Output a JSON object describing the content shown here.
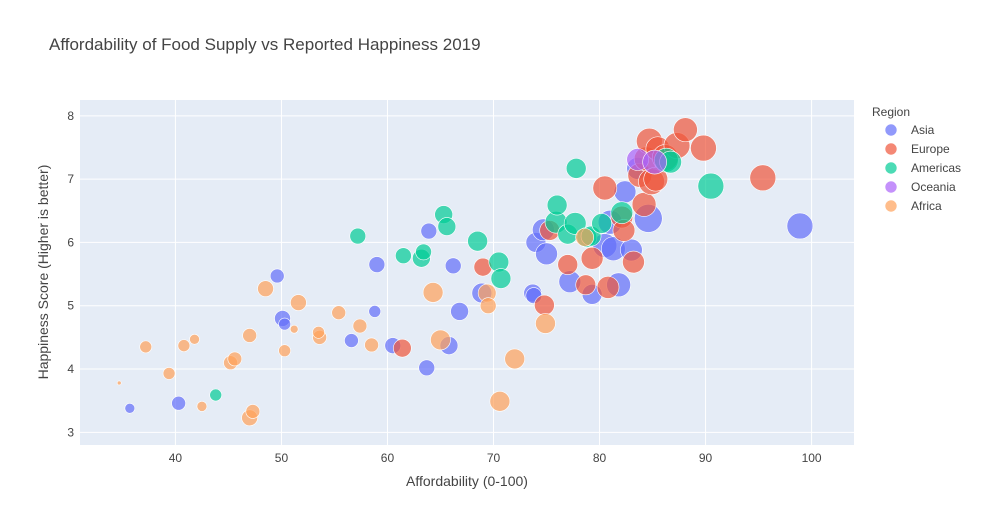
{
  "chart_data": {
    "type": "scatter",
    "title": "Affordability of Food Supply vs Reported Happiness 2019",
    "xlabel": "Affordability (0-100)",
    "ylabel": "Happiness Score (Higher is better)",
    "xlim": [
      31,
      104
    ],
    "ylim": [
      2.8,
      8.25
    ],
    "xticks": [
      40,
      50,
      60,
      70,
      80,
      90,
      100
    ],
    "yticks": [
      3,
      4,
      5,
      6,
      7,
      8
    ],
    "grid": true,
    "legend": {
      "title": "Region",
      "position": "right"
    },
    "series": [
      {
        "name": "Asia",
        "color": "#636efa",
        "points": [
          [
            35.7,
            3.38,
            5
          ],
          [
            40.3,
            3.46,
            7
          ],
          [
            49.6,
            5.47,
            7
          ],
          [
            50.1,
            4.8,
            8
          ],
          [
            50.3,
            4.71,
            6
          ],
          [
            56.6,
            4.45,
            7
          ],
          [
            58.8,
            4.91,
            6
          ],
          [
            59.0,
            5.65,
            8
          ],
          [
            60.5,
            4.37,
            8
          ],
          [
            63.7,
            4.02,
            8
          ],
          [
            63.9,
            6.18,
            8
          ],
          [
            65.8,
            4.37,
            9
          ],
          [
            66.2,
            5.63,
            8
          ],
          [
            66.8,
            4.91,
            9
          ],
          [
            68.9,
            5.2,
            10
          ],
          [
            73.7,
            5.2,
            9
          ],
          [
            73.8,
            5.16,
            8
          ],
          [
            74.0,
            6.0,
            10
          ],
          [
            74.7,
            6.2,
            11
          ],
          [
            75.0,
            5.82,
            11
          ],
          [
            77.2,
            5.38,
            11
          ],
          [
            79.3,
            5.18,
            10
          ],
          [
            80.5,
            5.95,
            12
          ],
          [
            81.0,
            6.32,
            12
          ],
          [
            81.3,
            5.9,
            12
          ],
          [
            81.8,
            5.33,
            12
          ],
          [
            82.4,
            6.8,
            11
          ],
          [
            83.0,
            5.88,
            11
          ],
          [
            83.6,
            7.17,
            11
          ],
          [
            84.6,
            6.38,
            14
          ],
          [
            98.9,
            6.26,
            13
          ]
        ]
      },
      {
        "name": "Europe",
        "color": "#ef553b",
        "points": [
          [
            61.4,
            4.33,
            9
          ],
          [
            69.0,
            5.61,
            9
          ],
          [
            74.8,
            5.01,
            10
          ],
          [
            75.3,
            6.19,
            10
          ],
          [
            77.0,
            5.65,
            10
          ],
          [
            78.7,
            5.33,
            10
          ],
          [
            79.3,
            5.75,
            11
          ],
          [
            80.5,
            6.86,
            12
          ],
          [
            80.8,
            5.29,
            11
          ],
          [
            82.1,
            6.4,
            11
          ],
          [
            82.3,
            6.19,
            11
          ],
          [
            83.2,
            5.69,
            11
          ],
          [
            83.8,
            7.06,
            12
          ],
          [
            84.2,
            6.6,
            12
          ],
          [
            84.4,
            7.32,
            12
          ],
          [
            84.7,
            7.6,
            13
          ],
          [
            84.9,
            6.96,
            13
          ],
          [
            85.3,
            7.0,
            12
          ],
          [
            85.5,
            7.48,
            12
          ],
          [
            86.2,
            7.34,
            13
          ],
          [
            87.3,
            7.53,
            13
          ],
          [
            88.1,
            7.78,
            12
          ],
          [
            89.8,
            7.49,
            13
          ],
          [
            95.4,
            7.02,
            13
          ]
        ]
      },
      {
        "name": "Americas",
        "color": "#00cc96",
        "points": [
          [
            43.8,
            3.59,
            6
          ],
          [
            57.2,
            6.1,
            8
          ],
          [
            61.5,
            5.79,
            8
          ],
          [
            63.2,
            5.75,
            9
          ],
          [
            63.4,
            5.85,
            8
          ],
          [
            65.3,
            6.44,
            9
          ],
          [
            65.6,
            6.25,
            9
          ],
          [
            68.5,
            6.02,
            10
          ],
          [
            70.5,
            5.69,
            10
          ],
          [
            70.7,
            5.43,
            10
          ],
          [
            75.9,
            6.32,
            11
          ],
          [
            76.0,
            6.59,
            10
          ],
          [
            77.0,
            6.13,
            10
          ],
          [
            77.7,
            6.3,
            11
          ],
          [
            77.8,
            7.17,
            10
          ],
          [
            78.8,
            6.08,
            10
          ],
          [
            79.2,
            6.1,
            10
          ],
          [
            80.2,
            6.3,
            10
          ],
          [
            82.1,
            6.47,
            11
          ],
          [
            86.3,
            7.3,
            12
          ],
          [
            86.7,
            7.27,
            11
          ],
          [
            90.5,
            6.89,
            13
          ]
        ]
      },
      {
        "name": "Oceania",
        "color": "#ab63fa",
        "points": [
          [
            83.6,
            7.31,
            11
          ],
          [
            85.2,
            7.27,
            12
          ]
        ]
      },
      {
        "name": "Africa",
        "color": "#ffa15a",
        "points": [
          [
            34.7,
            3.78,
            2
          ],
          [
            37.2,
            4.35,
            6
          ],
          [
            39.4,
            3.93,
            6
          ],
          [
            40.8,
            4.37,
            6
          ],
          [
            41.8,
            4.47,
            5
          ],
          [
            42.5,
            3.41,
            5
          ],
          [
            45.2,
            4.1,
            7
          ],
          [
            45.6,
            4.16,
            7
          ],
          [
            47.0,
            3.23,
            8
          ],
          [
            47.3,
            3.33,
            7
          ],
          [
            47.0,
            4.53,
            7
          ],
          [
            48.5,
            5.27,
            8
          ],
          [
            50.3,
            4.29,
            6
          ],
          [
            51.2,
            4.63,
            4
          ],
          [
            51.6,
            5.05,
            8
          ],
          [
            53.6,
            4.5,
            7
          ],
          [
            53.5,
            4.58,
            6
          ],
          [
            55.4,
            4.89,
            7
          ],
          [
            57.4,
            4.68,
            7
          ],
          [
            58.5,
            4.38,
            7
          ],
          [
            64.3,
            5.21,
            10
          ],
          [
            65.0,
            4.46,
            10
          ],
          [
            69.4,
            5.2,
            9
          ],
          [
            69.5,
            5.0,
            8
          ],
          [
            70.6,
            3.49,
            10
          ],
          [
            72.0,
            4.16,
            10
          ],
          [
            74.9,
            4.72,
            10
          ],
          [
            78.6,
            6.08,
            9
          ]
        ]
      }
    ]
  }
}
